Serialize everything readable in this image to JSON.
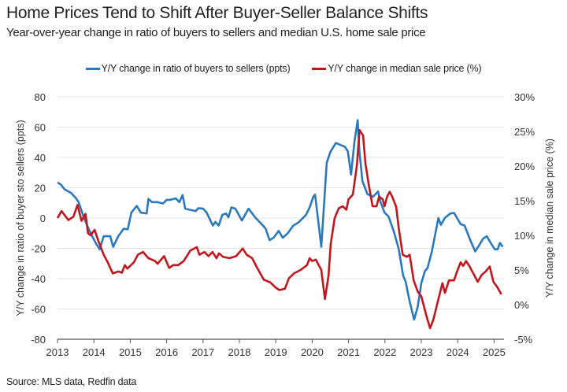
{
  "title": "Home Prices Tend to Shift After Buyer-Seller Balance Shifts",
  "subtitle": "Year-over-year change in ratio of buyers to sellers and median U.S. home sale price",
  "source": "Source: MLS data, Redfin data",
  "colors": {
    "buyers": "#2a79bd",
    "price": "#c3161c",
    "grid": "#e4e4e4"
  },
  "chart_data": {
    "type": "line",
    "grid": true,
    "legend_position": "top-center",
    "xlim": [
      2013,
      2025.35
    ],
    "x_ticks": [
      "2013",
      "2014",
      "2015",
      "2016",
      "2017",
      "2018",
      "2019",
      "2020",
      "2021",
      "2022",
      "2023",
      "2024",
      "2025"
    ],
    "y_left": {
      "label": "Y/Y change in ratio of buyer sto sellers (ppts)",
      "lim": [
        -80,
        80
      ],
      "ticks": [
        "80",
        "60",
        "40",
        "20",
        "0",
        "-20",
        "-40",
        "-60",
        "-80"
      ]
    },
    "y_right": {
      "label": "Y/Y change in median sale price (%)",
      "lim": [
        -5,
        30
      ],
      "ticks": [
        "30%",
        "25%",
        "20%",
        "15%",
        "10%",
        "5%",
        "0%",
        "-5%"
      ]
    },
    "series": [
      {
        "name": "Y/Y change in ratio of buyers to sellers (ppts)",
        "axis": "left",
        "x": [
          2013.0,
          2013.1,
          2013.19,
          2013.37,
          2013.51,
          2013.58,
          2013.73,
          2013.87,
          2014.06,
          2014.16,
          2014.27,
          2014.45,
          2014.53,
          2014.67,
          2014.82,
          2014.93,
          2015.03,
          2015.18,
          2015.29,
          2015.45,
          2015.5,
          2015.6,
          2015.75,
          2015.9,
          2016.0,
          2016.1,
          2016.25,
          2016.35,
          2016.44,
          2016.51,
          2016.65,
          2016.8,
          2016.87,
          2017.0,
          2017.1,
          2017.27,
          2017.34,
          2017.43,
          2017.53,
          2017.63,
          2017.7,
          2017.78,
          2017.89,
          2018.07,
          2018.25,
          2018.43,
          2018.65,
          2018.72,
          2018.83,
          2018.94,
          2019.08,
          2019.19,
          2019.33,
          2019.48,
          2019.62,
          2019.83,
          2019.93,
          2020.03,
          2020.08,
          2020.25,
          2020.4,
          2020.5,
          2020.65,
          2020.8,
          2020.9,
          2020.98,
          2021.07,
          2021.16,
          2021.25,
          2021.3,
          2021.38,
          2021.52,
          2021.67,
          2021.81,
          2021.88,
          2021.99,
          2022.1,
          2022.24,
          2022.38,
          2022.5,
          2022.57,
          2022.68,
          2022.8,
          2022.9,
          2023.0,
          2023.1,
          2023.17,
          2023.29,
          2023.47,
          2023.54,
          2023.65,
          2023.8,
          2023.9,
          2023.97,
          2024.08,
          2024.19,
          2024.33,
          2024.48,
          2024.59,
          2024.7,
          2024.8,
          2024.92,
          2025.02,
          2025.1,
          2025.16,
          2025.24
        ],
        "y": [
          23.5,
          22,
          19,
          16.6,
          13,
          10.5,
          0,
          -8,
          -17,
          -20.6,
          -12,
          -12,
          -19,
          -12,
          -7,
          -7.5,
          3.6,
          8,
          3.6,
          3,
          12.6,
          10.5,
          10.5,
          9.6,
          12,
          12,
          13,
          10.5,
          15.2,
          6.2,
          5.4,
          4.6,
          6.5,
          6.2,
          3.6,
          -5,
          -2.5,
          -5,
          2,
          3,
          0.5,
          7,
          6.2,
          -1.6,
          6.2,
          0.5,
          -5,
          -7,
          -14.6,
          -13,
          -8.5,
          -13,
          -10,
          -5,
          -3,
          2,
          7,
          14,
          15.5,
          -19,
          36.5,
          43.6,
          49.5,
          48,
          47,
          44,
          28.7,
          50,
          64.6,
          43.6,
          24.4,
          15.8,
          14,
          17.5,
          10.5,
          3.6,
          1,
          -8.5,
          -20.6,
          -38,
          -42,
          -55,
          -67,
          -58.7,
          -43,
          -35,
          -33,
          -22,
          0,
          -4.5,
          0.2,
          3,
          3.3,
          0.5,
          -4,
          -5,
          -13.6,
          -22,
          -18,
          -13.6,
          -12,
          -17,
          -20.6,
          -20.6,
          -16.4,
          -19
        ]
      },
      {
        "name": "Y/Y change in median sale price (%)",
        "axis": "right",
        "x": [
          2013.0,
          2013.11,
          2013.3,
          2013.44,
          2013.55,
          2013.66,
          2013.77,
          2013.84,
          2013.91,
          2014.02,
          2014.13,
          2014.27,
          2014.38,
          2014.52,
          2014.67,
          2014.77,
          2014.85,
          2014.92,
          2015.1,
          2015.21,
          2015.35,
          2015.5,
          2015.68,
          2015.75,
          2015.93,
          2016.07,
          2016.18,
          2016.32,
          2016.47,
          2016.65,
          2016.83,
          2016.9,
          2017.04,
          2017.15,
          2017.26,
          2017.37,
          2017.44,
          2017.55,
          2017.73,
          2017.91,
          2018.09,
          2018.2,
          2018.35,
          2018.49,
          2018.67,
          2018.85,
          2018.99,
          2019.1,
          2019.25,
          2019.36,
          2019.5,
          2019.68,
          2019.86,
          2019.93,
          2020.0,
          2020.1,
          2020.25,
          2020.35,
          2020.45,
          2020.51,
          2020.62,
          2020.73,
          2020.84,
          2020.94,
          2021.0,
          2021.12,
          2021.23,
          2021.3,
          2021.4,
          2021.46,
          2021.55,
          2021.66,
          2021.77,
          2021.84,
          2021.94,
          2021.99,
          2022.06,
          2022.13,
          2022.2,
          2022.31,
          2022.38,
          2022.49,
          2022.6,
          2022.68,
          2022.79,
          2022.9,
          2023.0,
          2023.15,
          2023.24,
          2023.33,
          2023.47,
          2023.58,
          2023.65,
          2023.76,
          2023.9,
          2023.97,
          2024.08,
          2024.15,
          2024.23,
          2024.33,
          2024.44,
          2024.55,
          2024.66,
          2024.77,
          2024.88,
          2024.98,
          2025.09,
          2025.2
        ],
        "y": [
          12.5,
          13.5,
          12.2,
          12.7,
          14.4,
          12.1,
          13.1,
          10.3,
          10,
          10.8,
          9.1,
          7.2,
          6.1,
          4.5,
          4.8,
          4.6,
          5.7,
          5.2,
          6.1,
          7.2,
          7.6,
          6.7,
          6.3,
          5.9,
          7,
          5.3,
          5.7,
          5.7,
          6.3,
          7.8,
          8.3,
          7.2,
          7.6,
          7,
          7.6,
          6.7,
          7.4,
          6.9,
          6.7,
          7,
          8.1,
          7.2,
          6.7,
          5.3,
          3.6,
          3.2,
          2.5,
          2.1,
          2.3,
          3.8,
          4.5,
          5,
          5.7,
          6.7,
          6.3,
          6.5,
          5,
          0.8,
          4.2,
          8.8,
          12.5,
          13.9,
          14.2,
          13.7,
          15.2,
          15.9,
          20.1,
          25.2,
          24.4,
          20.5,
          17.5,
          14.2,
          14.2,
          15.6,
          15.2,
          14.2,
          15.6,
          16.3,
          15.6,
          14.1,
          11,
          7.2,
          6.9,
          7.2,
          3.5,
          1.9,
          1.2,
          -1.8,
          -3.4,
          -2.2,
          0.8,
          3.1,
          1.7,
          3.5,
          3.5,
          4.6,
          6.1,
          5.6,
          6.3,
          5.5,
          4.4,
          3.3,
          4.3,
          4.8,
          5.5,
          3.3,
          2.5,
          1.5
        ]
      }
    ]
  }
}
